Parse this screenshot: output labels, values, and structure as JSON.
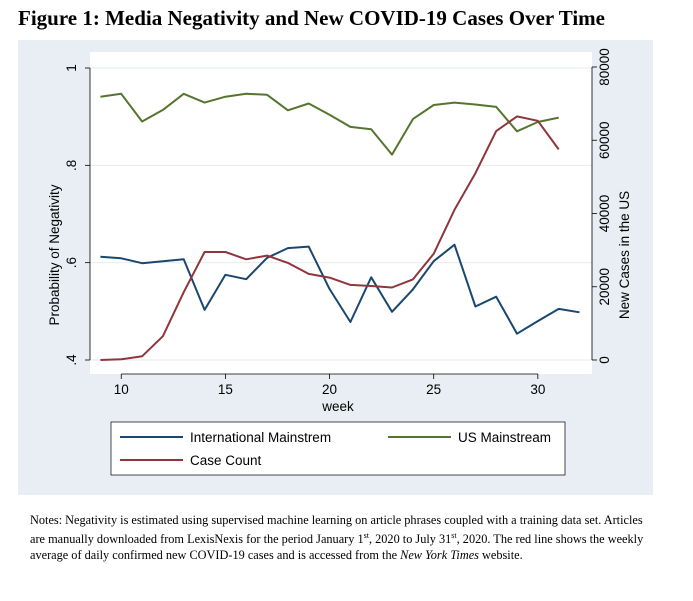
{
  "figure": {
    "title": "Figure 1: Media Negativity and New COVID-19 Cases Over Time"
  },
  "notes": {
    "part1": "Notes: Negativity is estimated using supervised machine learning on article phrases coupled with a training data set. Articles are manually downloaded from LexisNexis for the period January 1",
    "sup1": "st",
    "part2": ", 2020 to July 31",
    "sup2": "st",
    "part3": ", 2020.  The red line shows the weekly average of daily confirmed new COVID-19 cases and is accessed from the ",
    "source": "New York Times",
    "part4": " website."
  },
  "colors": {
    "plot_background": "#ffffff",
    "outer_background": "#e8eef3",
    "grid": "#e6ebf0",
    "international": "#1a476f",
    "us": "#55752f",
    "cases": "#90353b"
  },
  "chart_data": {
    "type": "line",
    "xlabel": "week",
    "ylabel_left": "Probability of Negativity",
    "ylabel_right": "New Cases in the US",
    "xlim": [
      8.5,
      32.6
    ],
    "ylim_left": [
      0.4,
      1.0
    ],
    "ylim_right": [
      0,
      80000
    ],
    "x_ticks": [
      10,
      15,
      20,
      25,
      30
    ],
    "x_tick_labels": [
      "10",
      "15",
      "20",
      "25",
      "30"
    ],
    "y_left_ticks": [
      0.4,
      0.6,
      0.8,
      1.0
    ],
    "y_left_tick_labels": [
      ".4",
      ".6",
      ".8",
      "1"
    ],
    "y_right_ticks": [
      0,
      20000,
      40000,
      60000,
      80000
    ],
    "y_right_tick_labels": [
      "0",
      "20000",
      "40000",
      "60000",
      "80000"
    ],
    "grid": true,
    "legend_position": "bottom",
    "series": [
      {
        "name": "International Mainstrem",
        "axis": "left",
        "color": "#1a476f",
        "x": [
          9,
          10,
          11,
          12,
          13,
          14,
          15,
          16,
          17,
          18,
          19,
          20,
          21,
          22,
          23,
          24,
          25,
          26,
          27,
          28,
          29,
          30,
          31,
          32
        ],
        "y": [
          0.612,
          0.609,
          0.599,
          0.603,
          0.607,
          0.503,
          0.575,
          0.566,
          0.61,
          0.63,
          0.633,
          0.546,
          0.478,
          0.57,
          0.499,
          0.545,
          0.603,
          0.637,
          0.51,
          0.53,
          0.454,
          0.48,
          0.505,
          0.498
        ]
      },
      {
        "name": "US Mainstream",
        "axis": "left",
        "color": "#55752f",
        "x": [
          9,
          10,
          11,
          12,
          13,
          14,
          15,
          16,
          17,
          18,
          19,
          20,
          21,
          22,
          23,
          24,
          25,
          26,
          27,
          28,
          29,
          30,
          31
        ],
        "y": [
          0.941,
          0.947,
          0.89,
          0.914,
          0.947,
          0.929,
          0.941,
          0.947,
          0.945,
          0.913,
          0.927,
          0.904,
          0.879,
          0.874,
          0.822,
          0.895,
          0.924,
          0.929,
          0.925,
          0.92,
          0.87,
          0.889,
          0.898
        ]
      },
      {
        "name": "Case Count",
        "axis": "right",
        "color": "#90353b",
        "x": [
          9,
          10,
          11,
          12,
          13,
          14,
          15,
          16,
          17,
          18,
          19,
          20,
          21,
          22,
          23,
          24,
          25,
          26,
          27,
          28,
          29,
          30,
          31
        ],
        "y": [
          0,
          200,
          1000,
          6500,
          18500,
          29500,
          29500,
          27500,
          28500,
          26500,
          23500,
          22500,
          20500,
          20200,
          19800,
          22000,
          29000,
          41000,
          51000,
          62500,
          66500,
          65300,
          57500
        ]
      }
    ]
  }
}
